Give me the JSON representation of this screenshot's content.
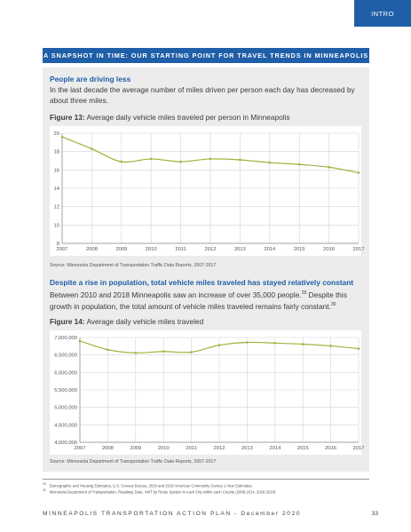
{
  "tab": {
    "label": "INTRO"
  },
  "banner": {
    "title": "A SNAPSHOT IN TIME: OUR STARTING POINT FOR TRAVEL TRENDS IN MINNEAPOLIS"
  },
  "section1": {
    "heading": "People are driving less",
    "body": "In the last decade the average number of miles driven per person each day has decreased by about three miles.",
    "figure_label": "Figure 13:",
    "figure_title": " Average daily vehicle miles traveled per person in Minneapolis",
    "source": "Source: Minnesota Department of Transportation Traffic Data Reports, 2007-2017"
  },
  "section2": {
    "heading": "Despite a rise in population, total vehicle miles traveled has stayed relatively constant",
    "body_part1": "Between 2010 and 2018 Minneapolis saw an increase of over 35,000 people.",
    "ref1": "29",
    "body_part2": " Despite this growth in population, the total amount of vehicle miles traveled remains fairly constant.",
    "ref2": "30",
    "figure_label": "Figure 14:",
    "figure_title": " Average daily vehicle miles traveled",
    "source": "Source: Minnesota Department of Transportation Traffic Data Reports, 2007-2017"
  },
  "chart_data": [
    {
      "type": "line",
      "x": [
        2007,
        2008,
        2009,
        2010,
        2011,
        2012,
        2013,
        2014,
        2015,
        2016,
        2017
      ],
      "values": [
        19.6,
        18.3,
        16.9,
        17.2,
        16.9,
        17.2,
        17.1,
        16.8,
        16.6,
        16.3,
        15.7
      ],
      "ylim": [
        8,
        20
      ],
      "yticks": [
        "20",
        "18",
        "16",
        "14",
        "12",
        "10",
        "8"
      ],
      "xticks": [
        "2007",
        "2008",
        "2009",
        "2010",
        "2011",
        "2012",
        "2013",
        "2014",
        "2015",
        "2016",
        "2017"
      ],
      "grid": true,
      "color": "#9bb53d"
    },
    {
      "type": "line",
      "x": [
        2007,
        2008,
        2009,
        2010,
        2011,
        2012,
        2013,
        2014,
        2015,
        2016,
        2017
      ],
      "values": [
        6900000,
        6650000,
        6560000,
        6600000,
        6580000,
        6780000,
        6860000,
        6840000,
        6810000,
        6760000,
        6680000
      ],
      "ylim": [
        4000000,
        7000000
      ],
      "yticks": [
        "7,000,000",
        "6,500,000",
        "6,000,000",
        "5,500,000",
        "5,000,000",
        "4,500,000",
        "4,000,000"
      ],
      "xticks": [
        "2007",
        "2008",
        "2009",
        "2010",
        "2011",
        "2012",
        "2013",
        "2014",
        "2015",
        "2016",
        "2017"
      ],
      "grid": true,
      "color": "#9bb53d"
    }
  ],
  "footnotes": [
    {
      "num": "29",
      "text": "Demographic and Housing Estimates, U.S. Census Bureau, 2010 and 2018 American Community Survey 1-Year Estimates"
    },
    {
      "num": "30",
      "text": "Minnesota Department of Transportation, Roadway Data, VMT by Route System in each City within each County (2008-2014, 2016-2018)"
    }
  ],
  "footer": {
    "title": "MINNEAPOLIS TRANSPORTATION ACTION PLAN - December 2020",
    "page": "33"
  }
}
